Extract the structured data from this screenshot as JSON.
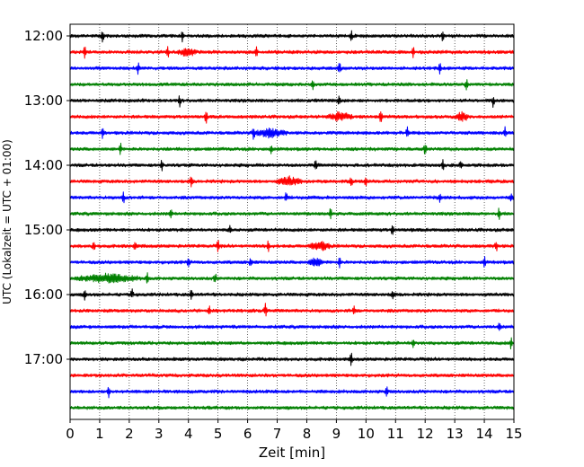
{
  "chart_data": {
    "type": "line",
    "chart_kind": "helicorder (multi-line seismogram)",
    "xlabel": "Zeit  [min]",
    "ylabel": "UTC (Lokalzeit = UTC + 01:00)",
    "xlim": [
      0,
      15
    ],
    "x_ticks": [
      "0",
      "1",
      "2",
      "3",
      "4",
      "5",
      "6",
      "7",
      "8",
      "9",
      "10",
      "11",
      "12",
      "13",
      "14",
      "15"
    ],
    "x_grid": "dotted vertical lines at each minute",
    "y_tick_labels": [
      "12:00",
      "13:00",
      "14:00",
      "15:00",
      "16:00",
      "17:00"
    ],
    "minutes_per_line": 15,
    "line_colors_cycle": [
      "#000000",
      "#ff0000",
      "#0000ff",
      "#008000"
    ],
    "traces": [
      {
        "start": "12:00",
        "color": "#000000",
        "spikes_min": [
          1.1,
          3.8,
          9.5,
          12.6
        ],
        "bursts": []
      },
      {
        "start": "12:15",
        "color": "#ff0000",
        "spikes_min": [
          0.5,
          3.3,
          6.3,
          11.6
        ],
        "bursts": [
          [
            3.6,
            4.3
          ]
        ]
      },
      {
        "start": "12:30",
        "color": "#0000ff",
        "spikes_min": [
          2.3,
          9.1,
          12.5
        ],
        "bursts": []
      },
      {
        "start": "12:45",
        "color": "#008000",
        "spikes_min": [
          8.2,
          13.4
        ],
        "bursts": []
      },
      {
        "start": "13:00",
        "color": "#000000",
        "spikes_min": [
          3.7,
          9.1,
          14.3
        ],
        "bursts": []
      },
      {
        "start": "13:15",
        "color": "#ff0000",
        "spikes_min": [
          4.6,
          10.5
        ],
        "bursts": [
          [
            8.6,
            9.6
          ],
          [
            13.0,
            13.5
          ]
        ]
      },
      {
        "start": "13:30",
        "color": "#0000ff",
        "spikes_min": [
          1.1,
          6.2,
          11.4,
          14.7
        ],
        "bursts": [
          [
            6.1,
            7.4
          ]
        ]
      },
      {
        "start": "13:45",
        "color": "#008000",
        "spikes_min": [
          1.7,
          6.8,
          12.0
        ],
        "bursts": []
      },
      {
        "start": "14:00",
        "color": "#000000",
        "spikes_min": [
          3.1,
          8.3,
          12.6,
          13.2
        ],
        "bursts": []
      },
      {
        "start": "14:15",
        "color": "#ff0000",
        "spikes_min": [
          4.1,
          9.5,
          10.0
        ],
        "bursts": [
          [
            6.9,
            7.9
          ]
        ]
      },
      {
        "start": "14:30",
        "color": "#0000ff",
        "spikes_min": [
          1.8,
          7.3,
          12.5,
          14.9
        ],
        "bursts": []
      },
      {
        "start": "14:45",
        "color": "#008000",
        "spikes_min": [
          3.4,
          8.8,
          14.5
        ],
        "bursts": []
      },
      {
        "start": "15:00",
        "color": "#000000",
        "spikes_min": [
          5.4,
          10.9
        ],
        "bursts": []
      },
      {
        "start": "15:15",
        "color": "#ff0000",
        "spikes_min": [
          0.8,
          2.2,
          5.0,
          6.7,
          14.4
        ],
        "bursts": [
          [
            8.0,
            8.9
          ]
        ]
      },
      {
        "start": "15:30",
        "color": "#0000ff",
        "spikes_min": [
          4.0,
          6.1,
          9.1,
          14.0
        ],
        "bursts": [
          [
            8.0,
            8.6
          ]
        ]
      },
      {
        "start": "15:45",
        "color": "#008000",
        "spikes_min": [
          2.6,
          4.9
        ],
        "bursts": [
          [
            0.0,
            2.5
          ]
        ]
      },
      {
        "start": "16:00",
        "color": "#000000",
        "spikes_min": [
          0.5,
          2.1,
          4.1,
          10.9
        ],
        "bursts": []
      },
      {
        "start": "16:15",
        "color": "#ff0000",
        "spikes_min": [
          4.7,
          6.6,
          9.6
        ],
        "bursts": []
      },
      {
        "start": "16:30",
        "color": "#0000ff",
        "spikes_min": [
          14.5
        ],
        "bursts": []
      },
      {
        "start": "16:45",
        "color": "#008000",
        "spikes_min": [
          11.6,
          14.9
        ],
        "bursts": []
      },
      {
        "start": "17:00",
        "color": "#000000",
        "spikes_min": [
          9.5
        ],
        "bursts": []
      },
      {
        "start": "17:15",
        "color": "#ff0000",
        "spikes_min": [],
        "bursts": []
      },
      {
        "start": "17:30",
        "color": "#0000ff",
        "spikes_min": [
          1.3,
          10.7
        ],
        "bursts": []
      },
      {
        "start": "17:45",
        "color": "#008000",
        "spikes_min": [],
        "bursts": []
      }
    ]
  }
}
